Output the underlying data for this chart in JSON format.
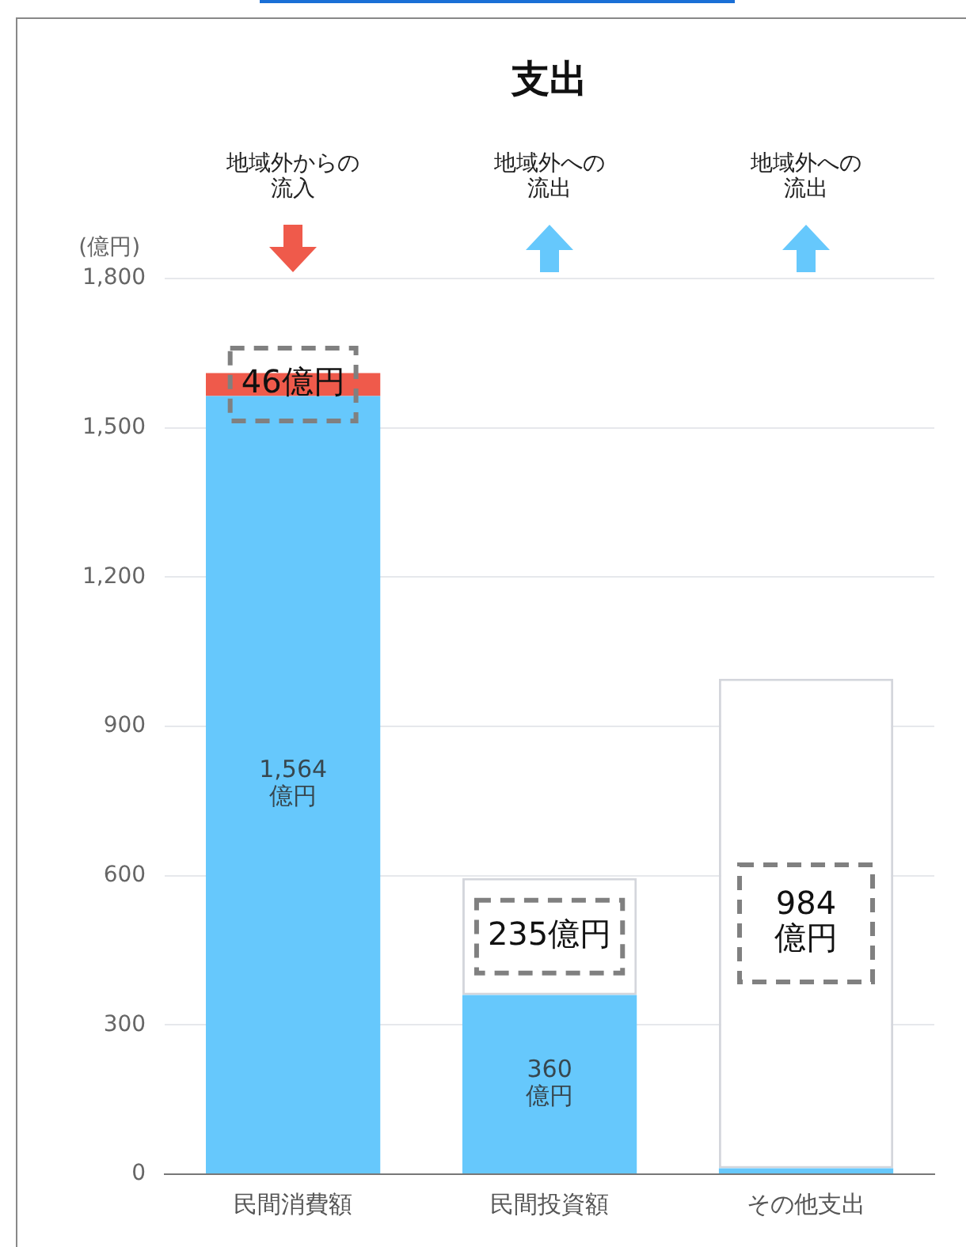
{
  "chart_data": {
    "type": "bar",
    "title": "支出",
    "ylabel": "(億円)",
    "stacked": true,
    "categories": [
      "民間消費額",
      "民間投資額",
      "その他支出"
    ],
    "series": [
      {
        "color": "#66c8fc",
        "values": [
          1564,
          360,
          12
        ],
        "value_labels": [
          "1,564\n億円",
          "360\n億円",
          null
        ]
      },
      {
        "colors": [
          "#ef5a4b",
          "#ffffff",
          "#ffffff"
        ],
        "values": [
          46,
          235,
          984
        ],
        "value_labels": [
          "46億円",
          "235億円",
          "984\n億円"
        ]
      }
    ],
    "annotations": [
      "地域外からの流入",
      "地域外への流出",
      "地域外への流出"
    ],
    "ylim": [
      0,
      1800
    ],
    "yticks": [
      0,
      {
        "value": 300,
        "label": "300"
      },
      {
        "value": 600,
        "label": "600"
      },
      {
        "value": 900,
        "label": "900"
      },
      {
        "value": 1200,
        "label": "1,200"
      },
      {
        "value": 1500,
        "label": "1,500"
      },
      {
        "value": 1800,
        "label": "1,800"
      }
    ],
    "grid": "y",
    "legend": false
  }
}
